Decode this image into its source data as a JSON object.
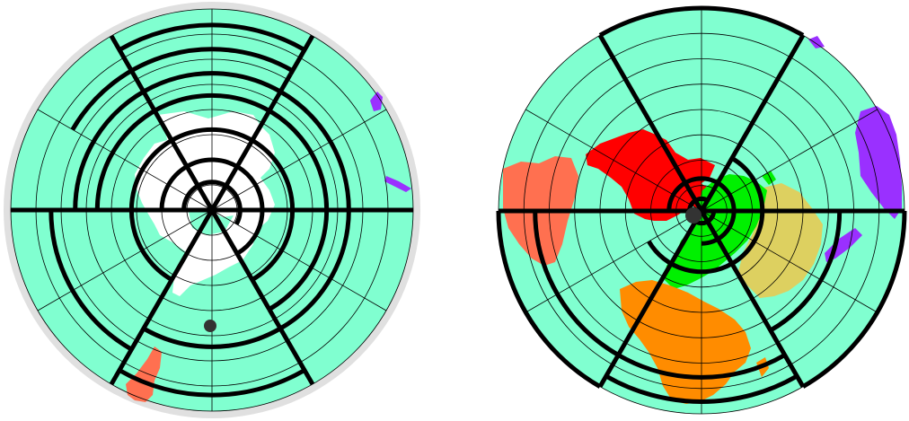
{
  "colors": {
    "ocean": "#80ffd0",
    "frame": "#e0e0e0",
    "gridline": "#000000",
    "antarctica": "#ffffff",
    "south_america": "#ff7050",
    "north_america": "#ff0000",
    "asia": "#00f000",
    "africa": "#ff8c00",
    "europe": "#ddd060",
    "oceania": "#9a30ff",
    "marker": "#333333"
  },
  "maps": [
    {
      "id": "south-polar-map",
      "projection": "azimuthal-equidistant",
      "centered_on": "south-pole",
      "outer_frame": true,
      "marker": "dot",
      "landmasses": [
        "antarctica",
        "south-america-tip",
        "oceania-fragment"
      ]
    },
    {
      "id": "north-polar-map",
      "projection": "azimuthal-equidistant",
      "centered_on": "north-pole",
      "outer_frame": false,
      "marker": "dot",
      "landmasses": [
        "north-america",
        "asia",
        "europe",
        "africa",
        "south-america",
        "oceania"
      ]
    }
  ]
}
